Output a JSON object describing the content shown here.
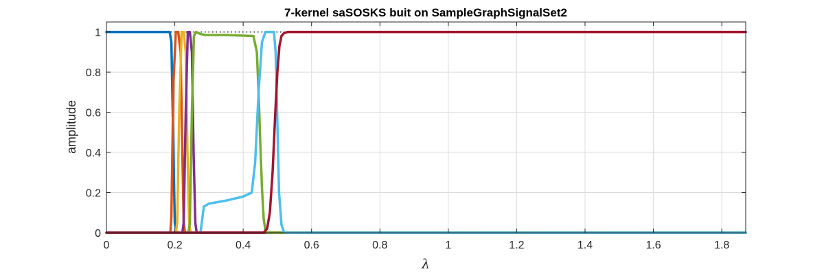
{
  "chart_data": {
    "type": "line",
    "title": "7-kernel saSOSKS buit on SampleGraphSignalSet2",
    "xlabel": "λ",
    "ylabel": "amplitude",
    "xlim": [
      0,
      1.87
    ],
    "ylim": [
      0,
      1.05
    ],
    "xticks": [
      0,
      0.2,
      0.4,
      0.6,
      0.8,
      1,
      1.2,
      1.4,
      1.6,
      1.8
    ],
    "xtick_labels": [
      "0",
      "0.2",
      "0.4",
      "0.6",
      "0.8",
      "1",
      "1.2",
      "1.4",
      "1.6",
      "1.8"
    ],
    "yticks": [
      0,
      0.2,
      0.4,
      0.6,
      0.8,
      1
    ],
    "ytick_labels": [
      "0",
      "0.2",
      "0.4",
      "0.6",
      "0.8",
      "1"
    ],
    "grid": true,
    "legend": "none",
    "reference": {
      "style": "dotted",
      "color": "#000000",
      "x": [
        0,
        1.87
      ],
      "y": [
        1,
        1
      ]
    },
    "series": [
      {
        "color": "#0072BD",
        "x": [
          0,
          0.185,
          0.19,
          0.195,
          0.2,
          0.205,
          1.87
        ],
        "y": [
          1,
          1,
          0.95,
          0.5,
          0.05,
          0,
          0
        ]
      },
      {
        "color": "#D95319",
        "x": [
          0,
          0.187,
          0.19,
          0.196,
          0.203,
          0.21,
          0.217,
          0.222,
          0.226,
          0.23,
          1.87
        ],
        "y": [
          0,
          0,
          0.08,
          0.75,
          1,
          1,
          0.9,
          0.4,
          0.05,
          0,
          0
        ]
      },
      {
        "color": "#EDB120",
        "x": [
          0,
          0.203,
          0.207,
          0.213,
          0.22,
          0.226,
          0.232,
          0.237,
          0.242,
          0.246,
          1.87
        ],
        "y": [
          0,
          0,
          0.05,
          0.6,
          1,
          1,
          0.9,
          0.4,
          0.05,
          0,
          0
        ]
      },
      {
        "color": "#7E2F8E",
        "x": [
          0,
          0.222,
          0.226,
          0.232,
          0.238,
          0.244,
          0.25,
          0.255,
          0.26,
          0.264,
          1.87
        ],
        "y": [
          0,
          0,
          0.05,
          0.6,
          1,
          1,
          0.9,
          0.4,
          0.05,
          0,
          0
        ]
      },
      {
        "color": "#77AC30",
        "x": [
          0,
          0.24,
          0.244,
          0.25,
          0.256,
          0.262,
          0.275,
          0.29,
          0.35,
          0.43,
          0.44,
          0.445,
          0.45,
          0.455,
          0.46,
          0.465,
          0.47,
          1.87
        ],
        "y": [
          0,
          0,
          0.05,
          0.6,
          0.98,
          1,
          0.99,
          0.985,
          0.985,
          0.98,
          0.9,
          0.7,
          0.45,
          0.22,
          0.07,
          0.01,
          0,
          0
        ]
      },
      {
        "color": "#4DBEEE",
        "x": [
          0,
          0.275,
          0.285,
          0.3,
          0.35,
          0.4,
          0.425,
          0.435,
          0.445,
          0.455,
          0.465,
          0.49,
          0.495,
          0.5,
          0.505,
          0.512,
          0.52,
          1.87
        ],
        "y": [
          0,
          0,
          0.13,
          0.145,
          0.16,
          0.18,
          0.2,
          0.35,
          0.7,
          0.95,
          1,
          1,
          0.9,
          0.55,
          0.2,
          0.04,
          0,
          0
        ]
      },
      {
        "color": "#A2142F",
        "x": [
          0,
          0.46,
          0.47,
          0.478,
          0.486,
          0.494,
          0.5,
          0.506,
          0.512,
          0.52,
          0.53,
          1.87
        ],
        "y": [
          0,
          0,
          0.02,
          0.1,
          0.3,
          0.6,
          0.8,
          0.93,
          0.98,
          0.995,
          1,
          1
        ]
      }
    ]
  }
}
